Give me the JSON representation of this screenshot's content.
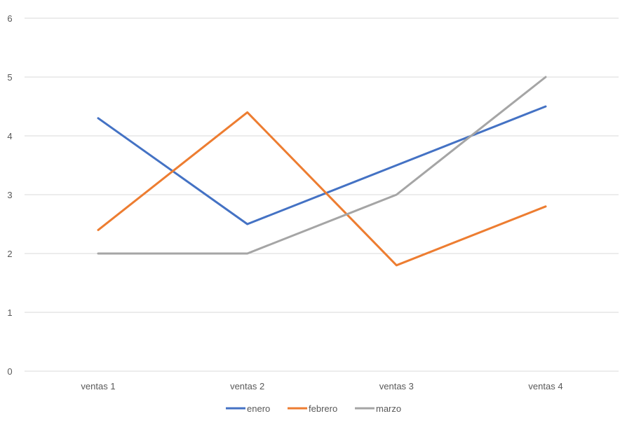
{
  "chart_data": {
    "type": "line",
    "categories": [
      "ventas 1",
      "ventas 2",
      "ventas 3",
      "ventas 4"
    ],
    "ylim": [
      0,
      6
    ],
    "yticks": [
      0,
      1,
      2,
      3,
      4,
      5,
      6
    ],
    "grid": true,
    "legend": "bottom",
    "series": [
      {
        "name": "enero",
        "color": "#4472c4",
        "values": [
          4.3,
          2.5,
          3.5,
          4.5
        ]
      },
      {
        "name": "febrero",
        "color": "#ed7d31",
        "values": [
          2.4,
          4.4,
          1.8,
          2.8
        ]
      },
      {
        "name": "marzo",
        "color": "#a5a5a5",
        "values": [
          2.0,
          2.0,
          3.0,
          5.0
        ]
      }
    ]
  }
}
